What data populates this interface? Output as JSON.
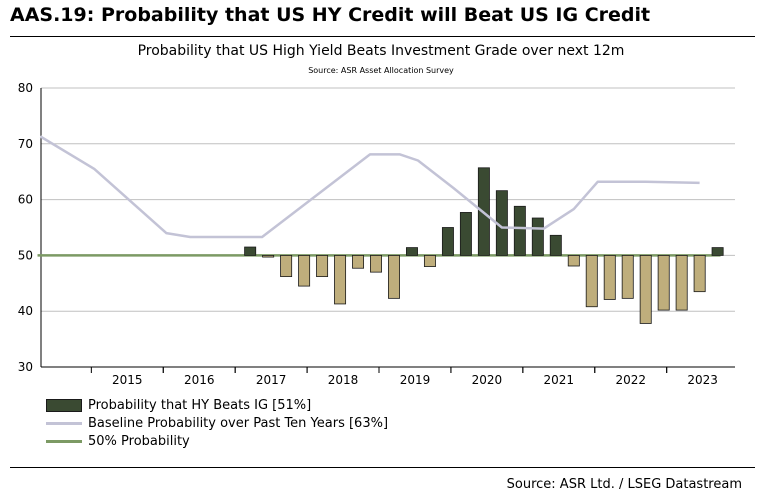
{
  "header": {
    "title": "AAS.19: Probability that US HY Credit will Beat US IG Credit"
  },
  "footer": {
    "source": "Source: ASR Ltd. / LSEG Datastream"
  },
  "chart_data": {
    "type": "bar",
    "title": "Probability that US High Yield Beats Investment Grade over next 12m",
    "subtitle": "Source: ASR Asset Allocation Survey",
    "xlabel": "",
    "ylabel": "",
    "ylim": [
      30,
      80
    ],
    "yticks": [
      30,
      40,
      50,
      60,
      70,
      80
    ],
    "xlim": [
      2014.3,
      2023.95
    ],
    "xticks": [
      "2015",
      "2016",
      "2017",
      "2018",
      "2019",
      "2020",
      "2021",
      "2022",
      "2023"
    ],
    "grid": true,
    "baseline": 50,
    "colors": {
      "bar_above": "#3a4a32",
      "bar_below": "#bfae7c",
      "bar_edge": "#1a1a1a",
      "baseline_series": "#c3c3d6",
      "fifty_line": "#7c9a64",
      "grid": "#c0c0c0"
    },
    "series": [
      {
        "name": "Probability that HY Beats IG  [51%]",
        "kind": "bar",
        "x": [
          "2017-03",
          "2017-06",
          "2017-09",
          "2017-12",
          "2018-03",
          "2018-06",
          "2018-09",
          "2018-12",
          "2019-03",
          "2019-06",
          "2019-09",
          "2019-12",
          "2020-03",
          "2020-06",
          "2020-09",
          "2020-12",
          "2021-03",
          "2021-06",
          "2021-09",
          "2021-12",
          "2022-03",
          "2022-06",
          "2022-09",
          "2022-12",
          "2023-03",
          "2023-06",
          "2023-09"
        ],
        "values": [
          51.5,
          49.7,
          46.2,
          44.5,
          46.2,
          41.3,
          47.7,
          47.0,
          42.3,
          51.4,
          48.0,
          55.0,
          57.7,
          65.7,
          61.6,
          58.8,
          56.7,
          53.6,
          48.1,
          40.8,
          42.1,
          42.3,
          37.8,
          40.2,
          40.2,
          43.5,
          51.4
        ]
      },
      {
        "name": "Baseline Probability over Past Ten Years [63%]",
        "kind": "line",
        "x": [
          "2014-04",
          "2015-01",
          "2016-01",
          "2016-05",
          "2017-05",
          "2018-11",
          "2019-04",
          "2019-07",
          "2020-01",
          "2020-09",
          "2021-04",
          "2021-09",
          "2022-01",
          "2022-09",
          "2023-06"
        ],
        "values": [
          71.3,
          65.5,
          54.0,
          53.3,
          53.3,
          68.1,
          68.1,
          67.0,
          62.0,
          55.0,
          54.8,
          58.3,
          63.2,
          63.2,
          63.0
        ]
      },
      {
        "name": "50% Probability",
        "kind": "line",
        "x": [
          "2014-04",
          "2023-09"
        ],
        "values": [
          50,
          50
        ]
      }
    ]
  }
}
